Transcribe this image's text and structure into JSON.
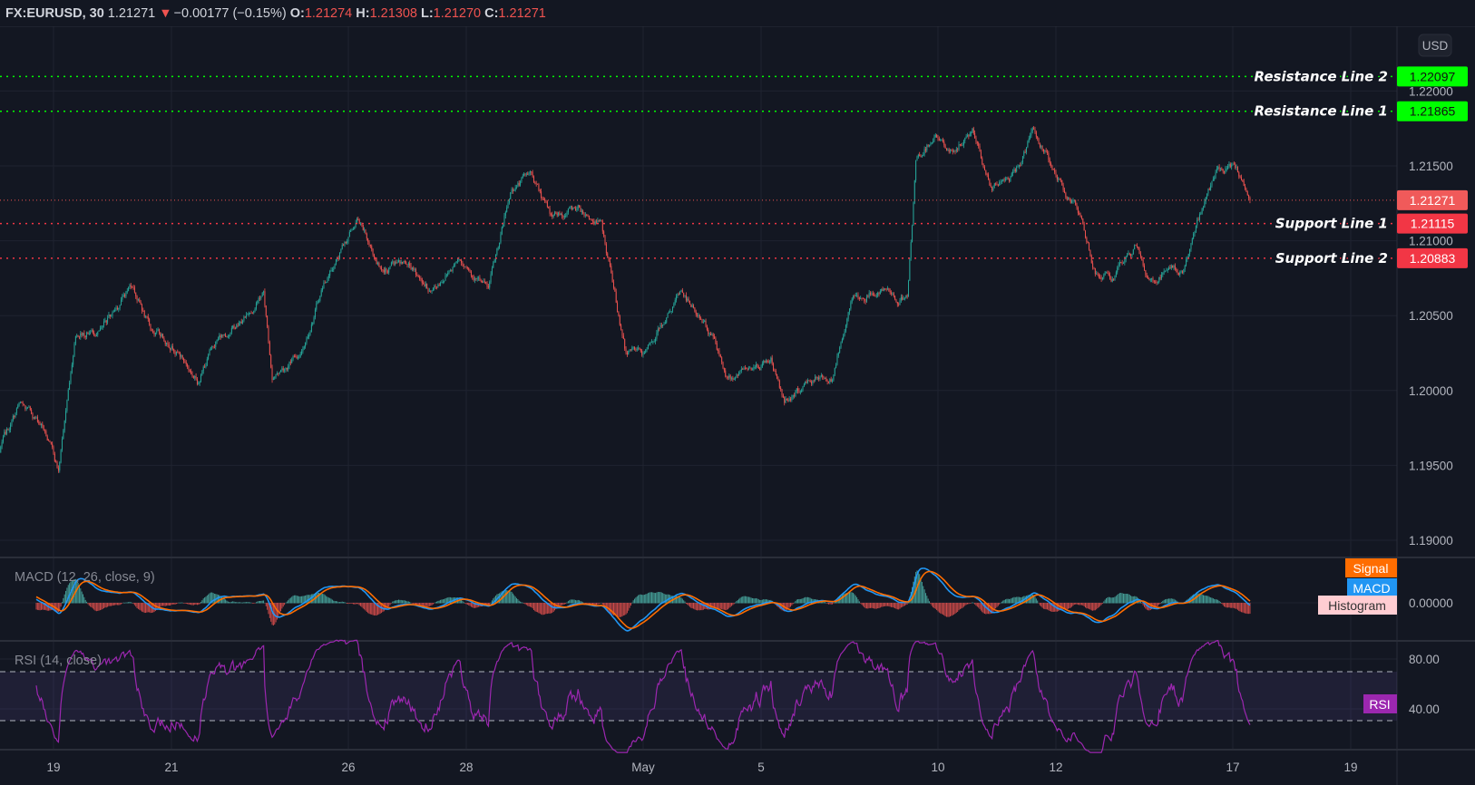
{
  "header": {
    "symbol": "FX:EURUSD, 30",
    "last": "1.21271",
    "direction_icon": "triangle-down",
    "change": "−0.00177 (−0.15%)",
    "o_label": "O:",
    "o": "1.21274",
    "h_label": "H:",
    "h": "1.21308",
    "l_label": "L:",
    "l": "1.21270",
    "c_label": "C:",
    "c": "1.21271"
  },
  "currency_button": "USD",
  "colors": {
    "background": "#131722",
    "up": "#26a69a",
    "down": "#ef5350",
    "resistance": "#00ff00",
    "support": "#f23645",
    "macd": "#2196f3",
    "signal": "#ff6d00",
    "rsi": "#9c27b0"
  },
  "chart_data": {
    "type": "candlestick",
    "symbol": "FX:EURUSD",
    "interval": "30",
    "price_ticks": [
      "1.22000",
      "1.21500",
      "1.21000",
      "1.20500",
      "1.20000",
      "1.19500",
      "1.19000"
    ],
    "ylim": [
      1.1875,
      1.2235
    ],
    "time_ticks": [
      {
        "label": "19",
        "date": "04-19"
      },
      {
        "label": "21",
        "date": "04-21"
      },
      {
        "label": "26",
        "date": "04-26"
      },
      {
        "label": "28",
        "date": "04-28"
      },
      {
        "label": "May",
        "date": "05-03"
      },
      {
        "label": "5",
        "date": "05-05"
      },
      {
        "label": "10",
        "date": "05-10"
      },
      {
        "label": "12",
        "date": "05-12"
      },
      {
        "label": "17",
        "date": "05-17"
      },
      {
        "label": "19",
        "date": "05-19"
      }
    ],
    "close_path": [
      [
        "04-16 02:00",
        1.1958
      ],
      [
        "04-16 10:00",
        1.199
      ],
      [
        "04-16 19:30",
        1.1977
      ],
      [
        "04-19 02:00",
        1.1946
      ],
      [
        "04-19 09:00",
        1.204
      ],
      [
        "04-19 20:00",
        1.204
      ],
      [
        "04-20 08:00",
        1.2072
      ],
      [
        "04-20 15:30",
        1.204
      ],
      [
        "04-21 01:00",
        1.2031
      ],
      [
        "04-21 10:30",
        1.2006
      ],
      [
        "04-21 18:00",
        1.2034
      ],
      [
        "04-22 05:30",
        1.2047
      ],
      [
        "04-22 13:30",
        1.2066
      ],
      [
        "04-22 17:00",
        1.2009
      ],
      [
        "04-23 04:30",
        1.2025
      ],
      [
        "04-23 14:00",
        1.2072
      ],
      [
        "04-26 03:30",
        1.2113
      ],
      [
        "04-26 13:00",
        1.2082
      ],
      [
        "04-26 22:30",
        1.2085
      ],
      [
        "04-27 10:00",
        1.2066
      ],
      [
        "04-27 21:30",
        1.2091
      ],
      [
        "04-28 09:00",
        1.2066
      ],
      [
        "04-28 18:30",
        1.2135
      ],
      [
        "04-29 02:30",
        1.2145
      ],
      [
        "04-29 10:00",
        1.2116
      ],
      [
        "04-29 21:30",
        1.2123
      ],
      [
        "04-30 07:00",
        1.211
      ],
      [
        "04-30 16:30",
        1.2028
      ],
      [
        "05-03 00:30",
        1.2022
      ],
      [
        "05-03 08:00",
        1.2047
      ],
      [
        "05-03 15:30",
        1.2066
      ],
      [
        "05-04 05:00",
        1.2034
      ],
      [
        "05-04 10:30",
        1.2009
      ],
      [
        "05-04 20:30",
        1.2015
      ],
      [
        "05-05 04:00",
        1.2022
      ],
      [
        "05-05 09:30",
        1.1993
      ],
      [
        "05-05 19:00",
        1.2006
      ],
      [
        "05-06 05:00",
        1.2009
      ],
      [
        "05-06 12:30",
        1.206
      ],
      [
        "05-06 22:00",
        1.2066
      ],
      [
        "05-07 11:30",
        1.206
      ],
      [
        "05-07 15:00",
        1.2151
      ],
      [
        "05-07 23:00",
        1.2173
      ],
      [
        "05-10 04:30",
        1.2158
      ],
      [
        "05-10 14:00",
        1.2173
      ],
      [
        "05-10 22:00",
        1.2135
      ],
      [
        "05-11 07:30",
        1.2145
      ],
      [
        "05-11 15:00",
        1.2173
      ],
      [
        "05-11 22:30",
        1.2148
      ],
      [
        "05-12 08:00",
        1.2123
      ],
      [
        "05-12 14:00",
        1.2091
      ],
      [
        "05-12 16:00",
        1.2078
      ],
      [
        "05-12 23:30",
        1.2075
      ],
      [
        "05-13 09:00",
        1.2097
      ],
      [
        "05-13 13:00",
        1.2072
      ],
      [
        "05-13 20:30",
        1.2078
      ],
      [
        "05-14 04:00",
        1.2082
      ],
      [
        "05-14 12:00",
        1.2123
      ],
      [
        "05-14 17:30",
        1.2145
      ],
      [
        "05-17 01:30",
        1.2148
      ],
      [
        "05-17 07:00",
        1.21271
      ]
    ],
    "last_price": {
      "value": 1.21271,
      "label": "1.21271"
    },
    "horizontal_lines": [
      {
        "name": "Resistance Line 2",
        "value": 1.22097,
        "label": "1.22097",
        "kind": "resistance"
      },
      {
        "name": "Resistance Line 1",
        "value": 1.21865,
        "label": "1.21865",
        "kind": "resistance"
      },
      {
        "name": "Support Line 1",
        "value": 1.21115,
        "label": "1.21115",
        "kind": "support"
      },
      {
        "name": "Support Line 2",
        "value": 1.20883,
        "label": "1.20883",
        "kind": "support"
      }
    ],
    "macd": {
      "title": "MACD (12, 26, close, 9)",
      "tick": "0.00000",
      "legend": [
        "Signal",
        "MACD",
        "Histogram"
      ]
    },
    "rsi": {
      "title": "RSI (14, close)",
      "ticks": [
        "80.00",
        "40.00"
      ],
      "upper_band": 70,
      "lower_band": 30,
      "legend": "RSI"
    }
  }
}
